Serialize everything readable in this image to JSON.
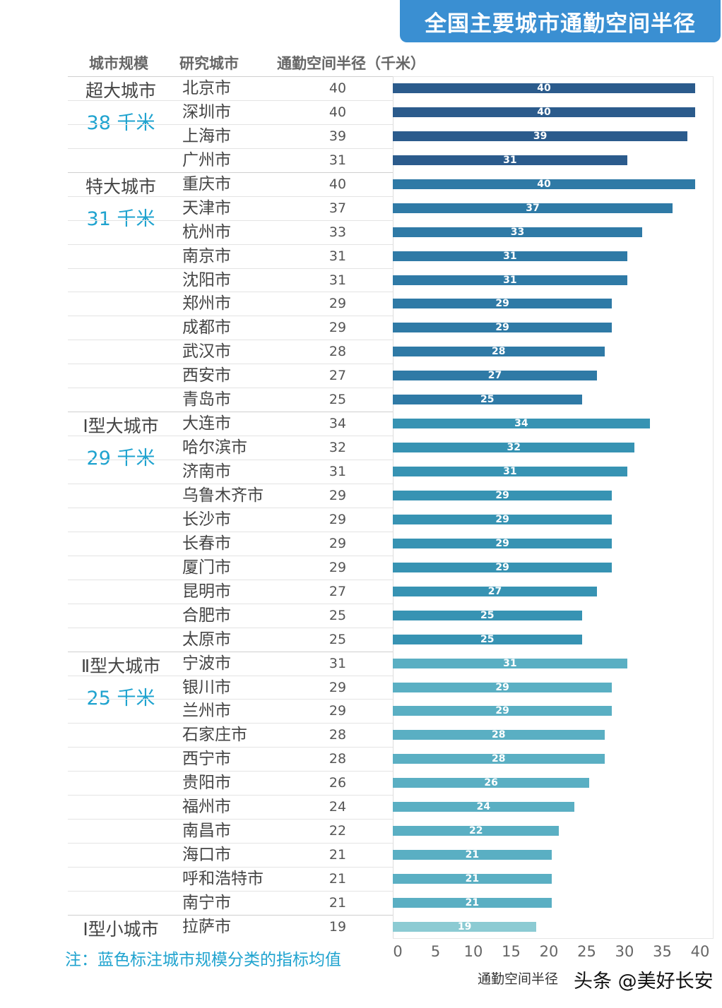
{
  "title": "全国主要城市通勤空间半径",
  "headers": {
    "group": "城市规模",
    "city": "研究城市",
    "value": "通勤空间半径（千米）"
  },
  "note": "注：蓝色标注城市规模分类的指标均值",
  "watermark": "头条 @美好长安",
  "colors": {
    "title_bg": "#3a8fd2",
    "avg_text": "#1fa3cf",
    "groups": [
      "#2b5b8c",
      "#2f7aa6",
      "#3793b3",
      "#5aafc3",
      "#8ccbd3"
    ]
  },
  "chart_data": {
    "type": "bar",
    "orientation": "horizontal",
    "xlabel": "通勤空间半径",
    "xlim": [
      0,
      40
    ],
    "xticks": [
      "0",
      "5",
      "10",
      "15",
      "20",
      "25",
      "30",
      "35",
      "40"
    ],
    "groups": [
      {
        "name": "超大城市",
        "avg": "38 千米",
        "cities": [
          "北京市",
          "深圳市",
          "上海市",
          "广州市"
        ],
        "values": [
          40,
          40,
          39,
          31
        ]
      },
      {
        "name": "特大城市",
        "avg": "31 千米",
        "cities": [
          "重庆市",
          "天津市",
          "杭州市",
          "南京市",
          "沈阳市",
          "郑州市",
          "成都市",
          "武汉市",
          "西安市",
          "青岛市"
        ],
        "values": [
          40,
          37,
          33,
          31,
          31,
          29,
          29,
          28,
          27,
          25
        ]
      },
      {
        "name": "Ⅰ型大城市",
        "avg": "29 千米",
        "cities": [
          "大连市",
          "哈尔滨市",
          "济南市",
          "乌鲁木齐市",
          "长沙市",
          "长春市",
          "厦门市",
          "昆明市",
          "合肥市",
          "太原市"
        ],
        "values": [
          34,
          32,
          31,
          29,
          29,
          29,
          29,
          27,
          25,
          25
        ]
      },
      {
        "name": "Ⅱ型大城市",
        "avg": "25 千米",
        "cities": [
          "宁波市",
          "银川市",
          "兰州市",
          "石家庄市",
          "西宁市",
          "贵阳市",
          "福州市",
          "南昌市",
          "海口市",
          "呼和浩特市",
          "南宁市"
        ],
        "values": [
          31,
          29,
          29,
          28,
          28,
          26,
          24,
          22,
          21,
          21,
          21
        ]
      },
      {
        "name": "Ⅰ型小城市",
        "avg": "",
        "cities": [
          "拉萨市"
        ],
        "values": [
          19
        ]
      }
    ]
  }
}
